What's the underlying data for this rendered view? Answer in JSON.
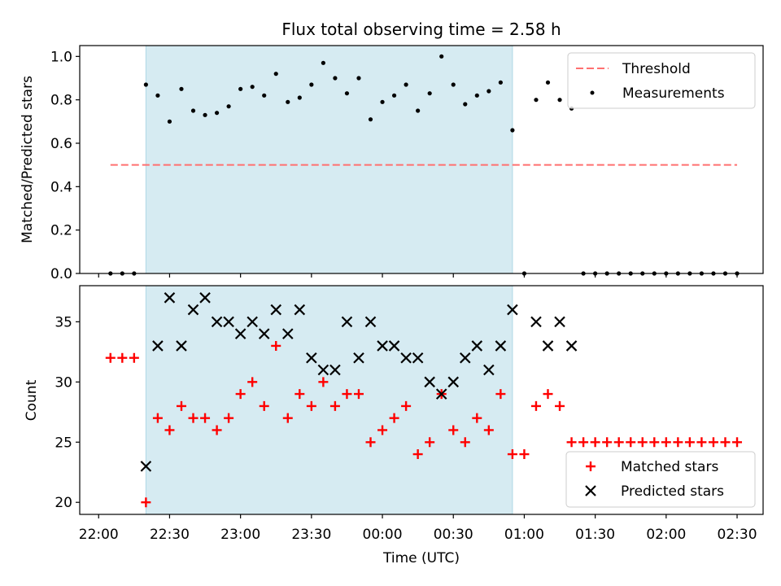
{
  "chart_data": {
    "type": "scatter",
    "title": "Flux total observing time = 2.58 h",
    "xlabel": "Time (UTC)",
    "x_range": [
      "21:52",
      "02:41"
    ],
    "x_ticks": [
      "22:00",
      "22:30",
      "23:00",
      "23:30",
      "00:00",
      "00:30",
      "01:00",
      "01:30",
      "02:00",
      "02:30"
    ],
    "shaded_interval": [
      "22:20",
      "00:55"
    ],
    "shade_color": "#add8e6",
    "times": [
      "22:05",
      "22:10",
      "22:15",
      "22:20",
      "22:25",
      "22:30",
      "22:35",
      "22:40",
      "22:45",
      "22:50",
      "22:55",
      "23:00",
      "23:05",
      "23:10",
      "23:15",
      "23:20",
      "23:25",
      "23:30",
      "23:35",
      "23:40",
      "23:45",
      "23:50",
      "23:55",
      "00:00",
      "00:05",
      "00:10",
      "00:15",
      "00:20",
      "00:25",
      "00:30",
      "00:35",
      "00:40",
      "00:45",
      "00:50",
      "00:55",
      "01:00",
      "01:05",
      "01:10",
      "01:15",
      "01:20",
      "01:25",
      "01:30",
      "01:35",
      "01:40",
      "01:45",
      "01:50",
      "01:55",
      "02:00",
      "02:05",
      "02:10",
      "02:15",
      "02:20",
      "02:25",
      "02:30"
    ],
    "top": {
      "ylabel": "Matched/Predicted stars",
      "ylim": [
        0,
        1.05
      ],
      "y_ticks": [
        "0.0",
        "0.2",
        "0.4",
        "0.6",
        "0.8",
        "1.0"
      ],
      "threshold": {
        "name": "Threshold",
        "value": 0.5,
        "x_range": [
          "22:05",
          "02:30"
        ],
        "color": "#ff7070"
      },
      "measurements": {
        "name": "Measurements",
        "color": "#000000",
        "values": [
          0,
          0,
          0,
          0.87,
          0.82,
          0.7,
          0.85,
          0.75,
          0.73,
          0.74,
          0.77,
          0.85,
          0.86,
          0.82,
          0.92,
          0.79,
          0.81,
          0.87,
          0.97,
          0.9,
          0.83,
          0.9,
          0.71,
          0.79,
          0.82,
          0.87,
          0.75,
          0.83,
          1.0,
          0.87,
          0.78,
          0.82,
          0.84,
          0.88,
          0.66,
          0,
          0.8,
          0.88,
          0.8,
          0.76,
          0,
          0,
          0,
          0,
          0,
          0,
          0,
          0,
          0,
          0,
          0,
          0,
          0,
          0
        ]
      },
      "legend": {
        "placement": "top-right"
      }
    },
    "bottom": {
      "ylabel": "Count",
      "ylim": [
        19,
        38
      ],
      "y_ticks": [
        "20",
        "25",
        "30",
        "35"
      ],
      "matched": {
        "name": "Matched stars",
        "color": "#ff0000",
        "values": [
          32,
          32,
          32,
          20,
          27,
          26,
          28,
          27,
          27,
          26,
          27,
          29,
          30,
          28,
          33,
          27,
          29,
          28,
          30,
          28,
          29,
          29,
          25,
          26,
          27,
          28,
          24,
          25,
          29,
          26,
          25,
          27,
          26,
          29,
          24,
          24,
          28,
          29,
          28,
          25,
          25,
          25,
          25,
          25,
          25,
          25,
          25,
          25,
          25,
          25,
          25,
          25,
          25,
          25
        ]
      },
      "predicted": {
        "name": "Predicted stars",
        "color": "#000000",
        "values": [
          null,
          null,
          null,
          23,
          33,
          37,
          33,
          36,
          37,
          35,
          35,
          34,
          35,
          34,
          36,
          34,
          36,
          32,
          31,
          31,
          35,
          32,
          35,
          33,
          33,
          32,
          32,
          30,
          29,
          30,
          32,
          33,
          31,
          33,
          36,
          null,
          35,
          33,
          35,
          33,
          null,
          null,
          null,
          null,
          null,
          null,
          null,
          null,
          null,
          null,
          null,
          null,
          null,
          null
        ]
      },
      "legend": {
        "placement": "bottom-right"
      }
    }
  }
}
